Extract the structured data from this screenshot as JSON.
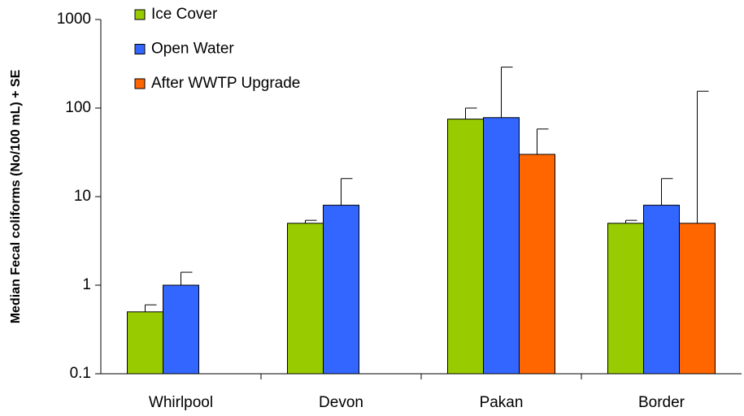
{
  "chart_data": {
    "type": "bar",
    "y_label": "Median Fecal coliforms (No/100 mL) + SE",
    "categories": [
      "Whirlpool",
      "Devon",
      "Pakan",
      "Border"
    ],
    "series": [
      {
        "name": "Ice Cover",
        "color": "#99cc00",
        "values": [
          0.5,
          5,
          75,
          5
        ],
        "errors": [
          0.1,
          0.4,
          25,
          0.4
        ]
      },
      {
        "name": "Open Water",
        "color": "#3366ff",
        "values": [
          1,
          8,
          78,
          8
        ],
        "errors": [
          0.4,
          8,
          212,
          8
        ]
      },
      {
        "name": "After WWTP Upgrade",
        "color": "#ff6600",
        "values": [
          null,
          null,
          30,
          5
        ],
        "errors": [
          null,
          null,
          28,
          150
        ]
      }
    ],
    "ylim": [
      0.1,
      1000
    ],
    "yticks": [
      0.1,
      1,
      10,
      100,
      1000
    ],
    "log_scale": true,
    "legend": "top-left"
  }
}
